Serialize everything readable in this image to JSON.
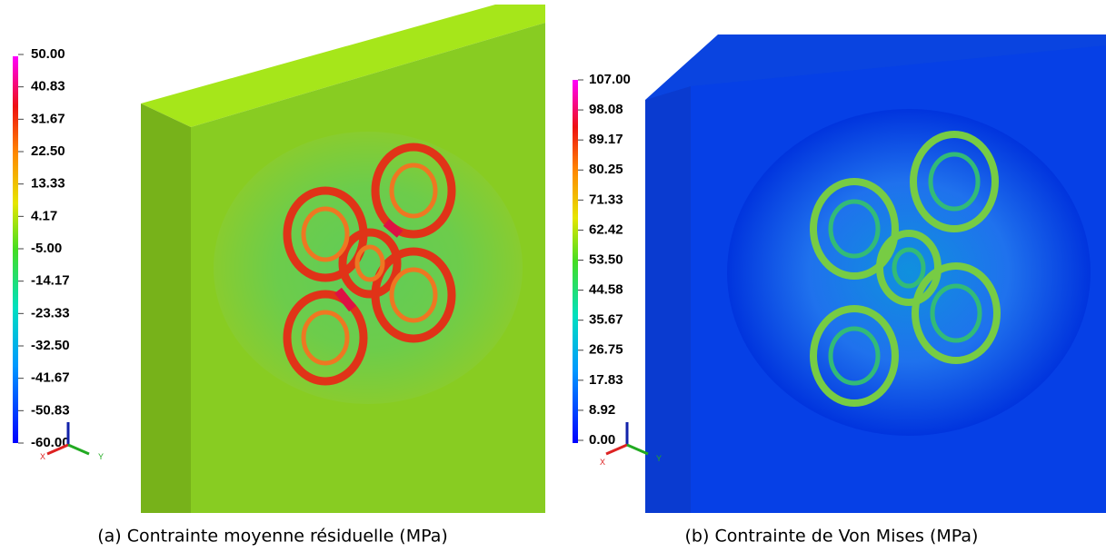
{
  "panels": [
    {
      "colorbar": {
        "labels": [
          "50.00",
          "40.83",
          "31.67",
          "22.50",
          "13.33",
          "4.17",
          "-5.00",
          "-14.17",
          "-23.33",
          "-32.50",
          "-41.67",
          "-50.83",
          "-60.00"
        ]
      },
      "caption": "(a) Contrainte moyenne résiduelle (MPa)"
    },
    {
      "colorbar": {
        "labels": [
          "107.00",
          "98.08",
          "89.17",
          "80.25",
          "71.33",
          "62.42",
          "53.50",
          "44.58",
          "35.67",
          "26.75",
          "17.83",
          "8.92",
          "0.00"
        ]
      },
      "caption": "(b) Contrainte de Von Mises (MPa)"
    }
  ]
}
